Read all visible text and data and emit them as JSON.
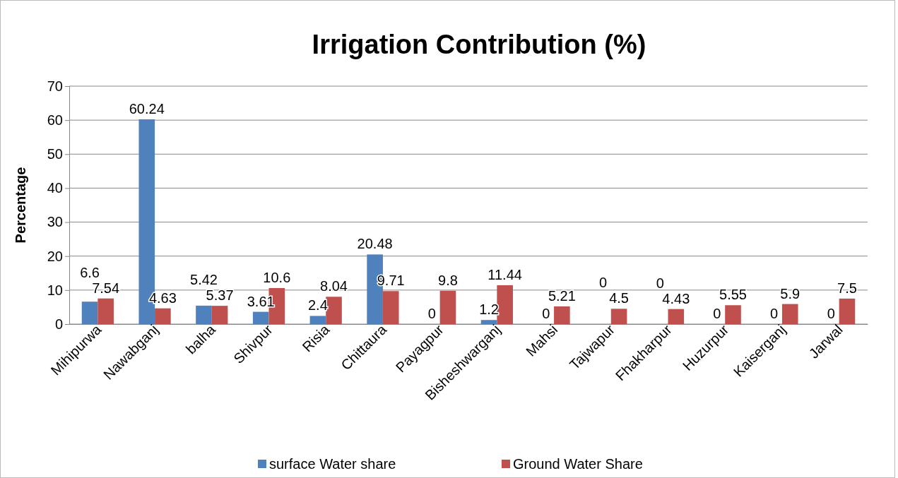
{
  "chart_data": {
    "type": "bar",
    "title": "Irrigation Contribution (%)",
    "ylabel": "Percentage",
    "categories": [
      "Mihipurwa",
      "Nawabganj",
      "balha",
      "Shivpur",
      "Risia",
      "Chittaura",
      "Payagpur",
      "Bisheshwarganj",
      "Mahsi",
      "Tajwapur",
      "Fhakharpur",
      "Huzurpur",
      "Kaiserganj",
      "Jarwal"
    ],
    "series": [
      {
        "name": "surface Water share",
        "color": "#4f81bd",
        "values": [
          6.6,
          60.24,
          5.42,
          3.61,
          2.4,
          20.48,
          0,
          1.2,
          0,
          0,
          0,
          0,
          0,
          0
        ]
      },
      {
        "name": "Ground Water Share",
        "color": "#c0504d",
        "values": [
          7.54,
          4.63,
          5.37,
          10.6,
          8.04,
          9.71,
          9.8,
          11.44,
          5.21,
          4.5,
          4.43,
          5.55,
          5.9,
          7.5
        ]
      }
    ],
    "ylim": [
      0,
      70
    ],
    "yticks": [
      0,
      10,
      20,
      30,
      40,
      50,
      60,
      70
    ],
    "grid": "y",
    "legend": "bottom",
    "data_labels": true
  }
}
